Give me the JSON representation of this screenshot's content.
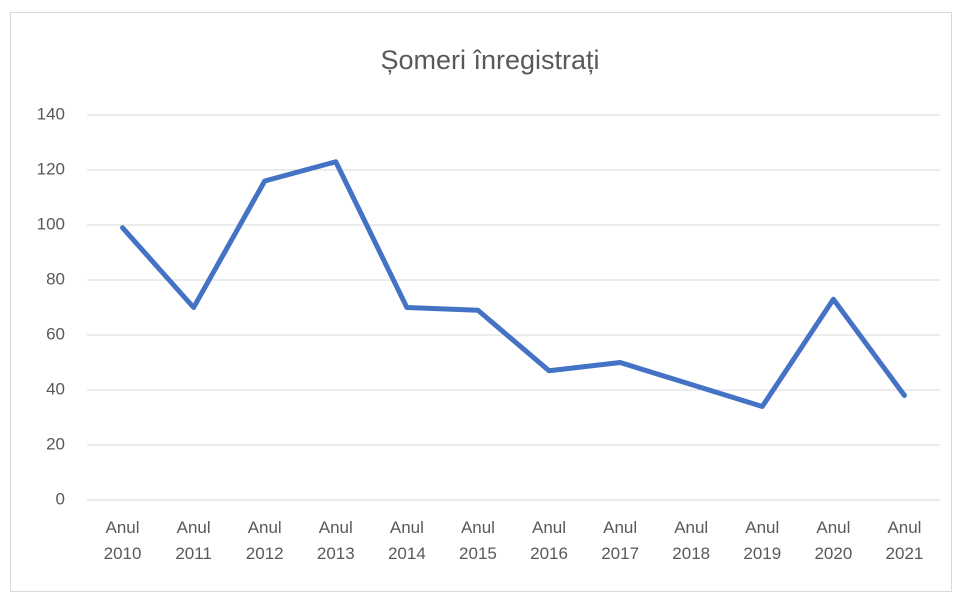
{
  "chart_data": {
    "type": "line",
    "title": "Șomeri înregistrați",
    "categories": [
      "Anul 2010",
      "Anul 2011",
      "Anul 2012",
      "Anul 2013",
      "Anul 2014",
      "Anul 2015",
      "Anul 2016",
      "Anul 2017",
      "Anul 2018",
      "Anul 2019",
      "Anul 2020",
      "Anul 2021"
    ],
    "series": [
      {
        "name": "Șomeri înregistrați",
        "color": "#4472c4",
        "values": [
          99,
          70,
          116,
          123,
          70,
          69,
          47,
          50,
          42,
          34,
          73,
          38
        ]
      }
    ],
    "ylim": [
      0,
      140
    ],
    "yticks": [
      0,
      20,
      40,
      60,
      80,
      100,
      120,
      140
    ],
    "grid": true
  }
}
